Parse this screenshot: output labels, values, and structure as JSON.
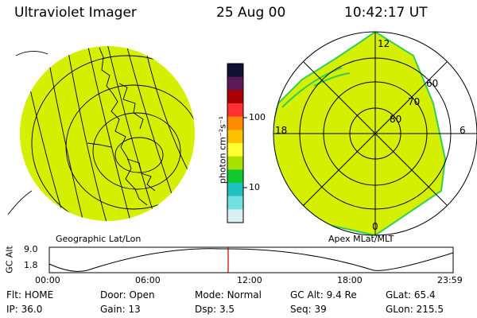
{
  "header": {
    "title": "Ultraviolet Imager",
    "date": "25 Aug 00",
    "time": "10:42:17 UT"
  },
  "left_panel": {
    "label": "Geographic Lat/Lon"
  },
  "right_panel": {
    "label": "Apex MLat/MLT",
    "mlt_labels": {
      "top": "12",
      "bottom": "0",
      "left": "18",
      "right": "6"
    },
    "lat_labels": [
      "60",
      "70",
      "80"
    ]
  },
  "colorbar": {
    "unit_label": "photon cm⁻²s⁻¹",
    "tick_labels": [
      "100",
      "10"
    ],
    "colors": [
      "#111133",
      "#5a1a5a",
      "#aa0000",
      "#ff3030",
      "#ff8c00",
      "#ffc000",
      "#ffff33",
      "#a8e000",
      "#10c830",
      "#20c0c0",
      "#70e0e0",
      "#d8f0f0"
    ]
  },
  "alt_plot": {
    "axis_label": "GC Alt",
    "y_ticks": [
      "9.0",
      "1.8"
    ],
    "x_ticks": [
      "00:00",
      "06:00",
      "12:00",
      "18:00",
      "23:59"
    ],
    "marker_color": "#cc0000"
  },
  "info_rows": [
    [
      {
        "label": "Flt:",
        "value": "HOME"
      },
      {
        "label": "Door:",
        "value": "Open"
      },
      {
        "label": "Mode:",
        "value": "Normal"
      },
      {
        "label": "GC Alt:",
        "value": "9.4 Re"
      },
      {
        "label": "GLat:",
        "value": "65.4"
      }
    ],
    [
      {
        "label": "IP:",
        "value": "36.0"
      },
      {
        "label": "Gain:",
        "value": "13"
      },
      {
        "label": "Dsp:",
        "value": "3.5"
      },
      {
        "label": "Seq:",
        "value": "39"
      },
      {
        "label": "GLon:",
        "value": "215.5"
      }
    ]
  ],
  "colors": {
    "aurora_fill": "#d4f000",
    "aurora_edge": "#33cc55"
  }
}
